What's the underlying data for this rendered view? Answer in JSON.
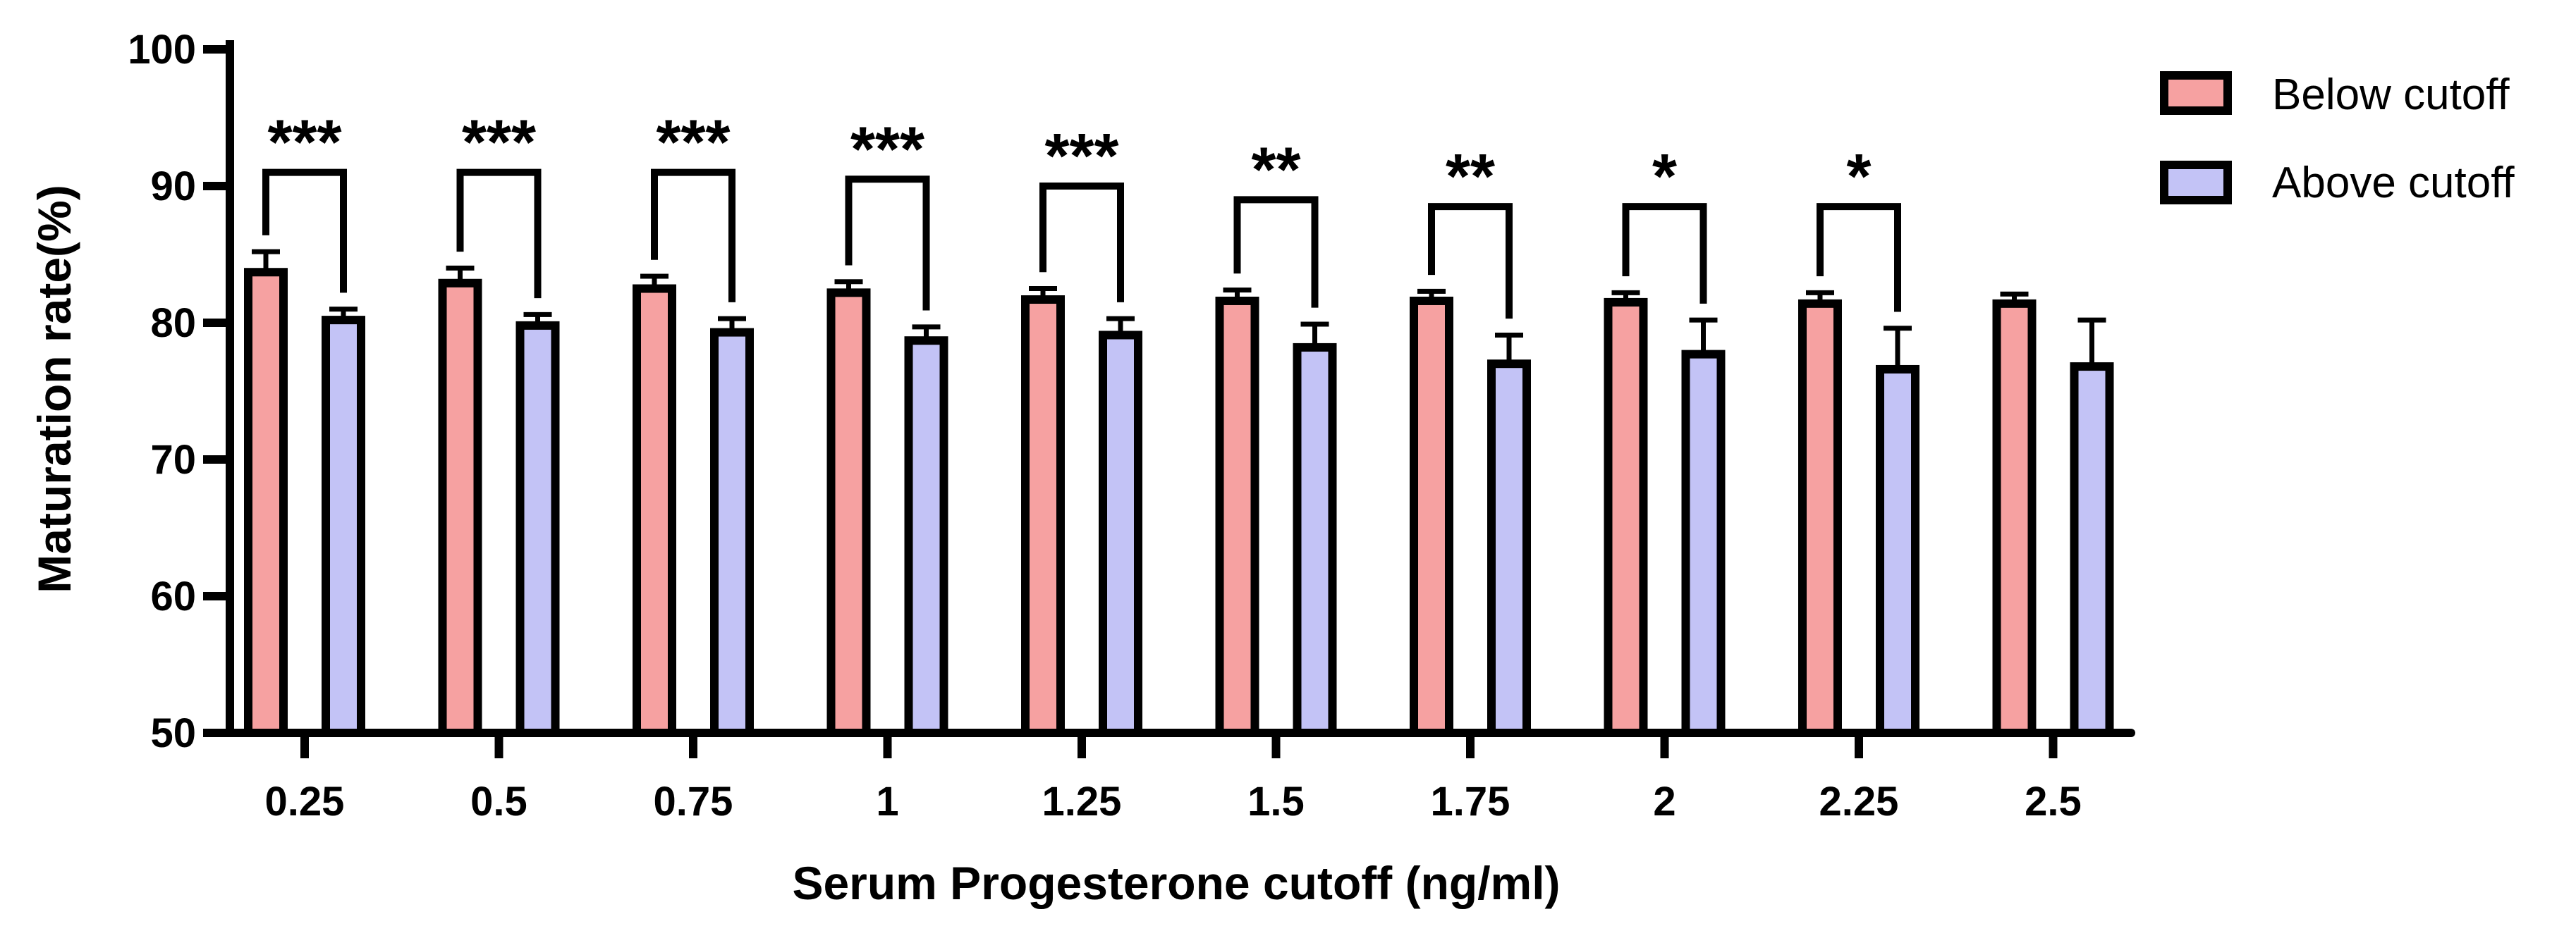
{
  "chart_data": {
    "type": "bar",
    "title": "",
    "xlabel": "Serum Progesterone cutoff (ng/ml)",
    "ylabel": "Maturation rate(%)",
    "ylim": [
      50,
      100
    ],
    "yticks": [
      50,
      60,
      70,
      80,
      90,
      100
    ],
    "categories": [
      "0.25",
      "0.5",
      "0.75",
      "1",
      "1.25",
      "1.5",
      "1.75",
      "2",
      "2.25",
      "2.5"
    ],
    "series": [
      {
        "name": "Below cutoff",
        "color": "#f6a1a1",
        "values": [
          83.7,
          82.9,
          82.5,
          82.2,
          81.7,
          81.6,
          81.6,
          81.5,
          81.4,
          81.4
        ],
        "error_upper": [
          85.2,
          84.0,
          83.4,
          83.0,
          82.5,
          82.4,
          82.3,
          82.2,
          82.2,
          82.1
        ]
      },
      {
        "name": "Above cutoff",
        "color": "#c3c3f6",
        "values": [
          80.2,
          79.8,
          79.3,
          78.7,
          79.1,
          78.2,
          77.0,
          77.7,
          76.6,
          76.8
        ],
        "error_upper": [
          81.0,
          80.6,
          80.3,
          79.7,
          80.3,
          79.9,
          79.1,
          80.2,
          79.6,
          80.2
        ]
      }
    ],
    "significance": [
      "***",
      "***",
      "***",
      "***",
      "***",
      "**",
      "**",
      "*",
      "*",
      ""
    ],
    "bracket_top": [
      91.0,
      91.0,
      91.0,
      90.5,
      90.0,
      89.0,
      88.5,
      88.5,
      88.5,
      null
    ],
    "legend_position": "top-right",
    "grid": false
  }
}
